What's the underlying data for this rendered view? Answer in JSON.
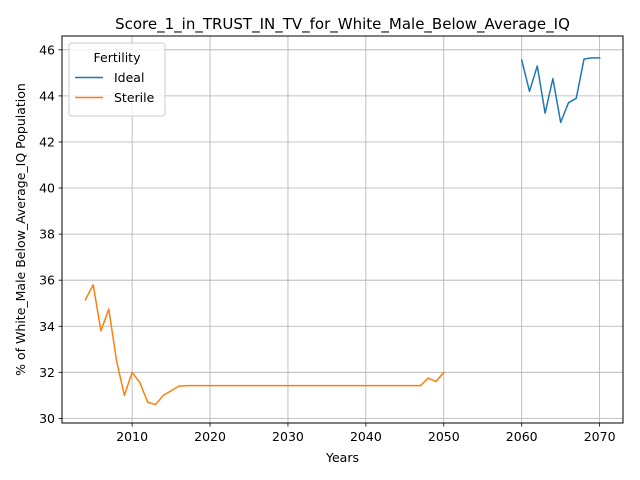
{
  "chart_data": {
    "type": "line",
    "title": "Score_1_in_TRUST_IN_TV_for_White_Male_Below_Average_IQ",
    "xlabel": "Years",
    "ylabel": "% of White_Male Below_Average_IQ Population",
    "xlim": [
      2001,
      2073
    ],
    "ylim": [
      29.8,
      46.6
    ],
    "xticks": [
      2010,
      2020,
      2030,
      2040,
      2050,
      2060,
      2070
    ],
    "yticks": [
      30,
      32,
      34,
      36,
      38,
      40,
      42,
      44,
      46
    ],
    "grid": true,
    "legend": {
      "title": "Fertility",
      "position": "top-left"
    },
    "series": [
      {
        "name": "Ideal",
        "color": "#1f77b4",
        "x": [
          2060,
          2061,
          2062,
          2063,
          2064,
          2065,
          2066,
          2067,
          2068,
          2069,
          2070
        ],
        "y": [
          45.55,
          44.2,
          45.3,
          43.25,
          44.75,
          42.85,
          43.7,
          43.9,
          45.6,
          45.65,
          45.65
        ]
      },
      {
        "name": "Sterile",
        "color": "#ff7f0e",
        "x": [
          2004,
          2005,
          2006,
          2007,
          2008,
          2009,
          2010,
          2011,
          2012,
          2013,
          2014,
          2015,
          2016,
          2017,
          2018,
          2019,
          2020,
          2021,
          2022,
          2023,
          2024,
          2025,
          2026,
          2027,
          2028,
          2029,
          2030,
          2031,
          2032,
          2033,
          2034,
          2035,
          2036,
          2037,
          2038,
          2039,
          2040,
          2041,
          2042,
          2043,
          2044,
          2045,
          2046,
          2047,
          2048,
          2049,
          2050
        ],
        "y": [
          35.15,
          35.8,
          33.8,
          34.75,
          32.5,
          31.0,
          32.0,
          31.55,
          30.7,
          30.6,
          31.0,
          31.2,
          31.4,
          31.42,
          31.42,
          31.42,
          31.42,
          31.42,
          31.42,
          31.42,
          31.42,
          31.42,
          31.42,
          31.42,
          31.42,
          31.42,
          31.42,
          31.42,
          31.42,
          31.42,
          31.42,
          31.42,
          31.42,
          31.42,
          31.42,
          31.42,
          31.42,
          31.42,
          31.42,
          31.42,
          31.42,
          31.42,
          31.42,
          31.42,
          31.75,
          31.6,
          32.0
        ]
      }
    ]
  }
}
